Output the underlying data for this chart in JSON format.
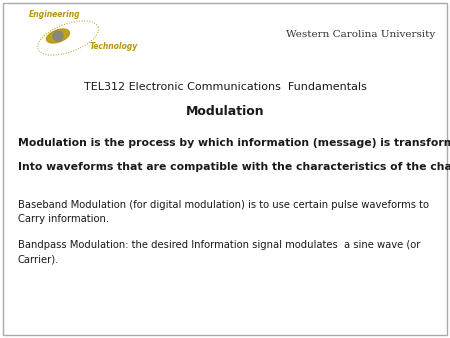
{
  "background_color": "#ffffff",
  "border_color": "#aaaaaa",
  "university_name": "Western Carolina University",
  "course_title": "TEL312 Electronic Communications  Fundamentals",
  "section_title": "Modulation",
  "bold_line1": "Modulation is the process by which information (message) is transformed",
  "bold_line2": "Into waveforms that are compatible with the characteristics of the channel.",
  "normal_text1": "Baseband Modulation (for digital modulation) is to use certain pulse waveforms to\nCarry information.",
  "normal_text2": "Bandpass Modulation: the desired Information signal modulates  a sine wave (or\nCarrier).",
  "text_color": "#1a1a1a",
  "university_color": "#333333",
  "logo_gold": "#b8960c"
}
